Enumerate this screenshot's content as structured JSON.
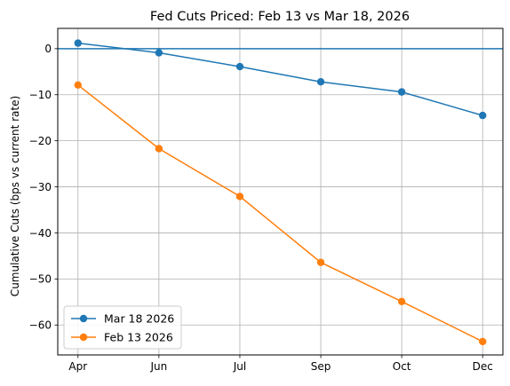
{
  "chart_data": {
    "type": "line",
    "title": "Fed Cuts Priced: Feb 13 vs Mar 18, 2026",
    "xlabel": "",
    "ylabel": "Cumulative Cuts (bps vs current rate)",
    "categories": [
      "Apr",
      "Jun",
      "Jul",
      "Sep",
      "Oct",
      "Dec"
    ],
    "ylim": [
      -66.5,
      4.4
    ],
    "yticks": [
      0,
      -10,
      -20,
      -30,
      -40,
      -50,
      -60
    ],
    "grid": true,
    "legend_position": "lower-left",
    "reference_line": {
      "y": 0,
      "color": "#1f77b4"
    },
    "series": [
      {
        "name": "Mar 18 2026",
        "color": "#1f77b4",
        "values": [
          1.2,
          -0.9,
          -3.9,
          -7.2,
          -9.4,
          -14.5
        ]
      },
      {
        "name": "Feb 13 2026",
        "color": "#ff7f0e",
        "values": [
          -7.9,
          -21.7,
          -32.1,
          -46.4,
          -54.9,
          -63.6
        ]
      }
    ]
  }
}
